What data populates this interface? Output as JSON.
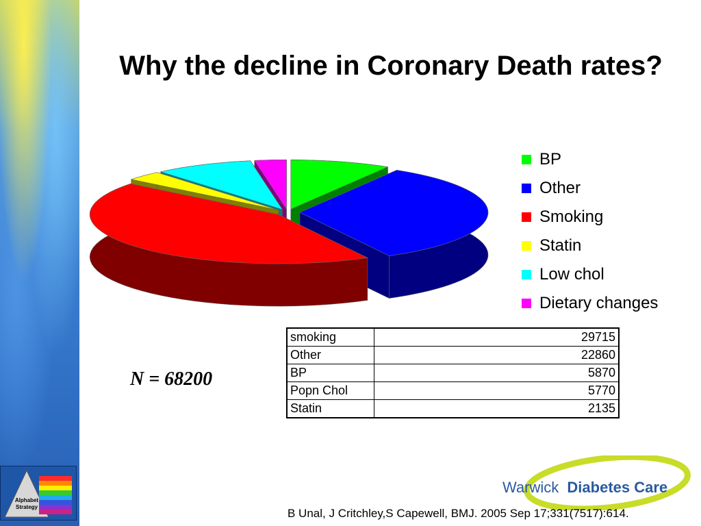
{
  "title": "Why the decline in Coronary Death rates?",
  "chart_data": {
    "type": "pie",
    "style": "3d-exploded",
    "legend_position": "right",
    "slices": [
      {
        "label": "BP",
        "value": 5870,
        "color": "#00ff00",
        "side_color": "#008000"
      },
      {
        "label": "Other",
        "value": 22860,
        "color": "#0000ff",
        "side_color": "#000080"
      },
      {
        "label": "Smoking",
        "value": 29715,
        "color": "#ff0000",
        "side_color": "#800000"
      },
      {
        "label": "Statin",
        "value": 2135,
        "color": "#ffff00",
        "side_color": "#808000"
      },
      {
        "label": "Low chol",
        "value": 5770,
        "color": "#00ffff",
        "side_color": "#008080"
      },
      {
        "label": "Dietary changes",
        "value": 1850,
        "color": "#ff00ff",
        "side_color": "#800080"
      }
    ]
  },
  "legend": [
    {
      "label": "BP",
      "color": "#00ff00"
    },
    {
      "label": "Other",
      "color": "#0000ff"
    },
    {
      "label": "Smoking",
      "color": "#ff0000"
    },
    {
      "label": "Statin",
      "color": "#ffff00"
    },
    {
      "label": "Low chol",
      "color": "#00ffff"
    },
    {
      "label": "Dietary changes",
      "color": "#ff00ff"
    }
  ],
  "table": {
    "rows": [
      {
        "label": "smoking",
        "value": "29715"
      },
      {
        "label": "Other",
        "value": "22860"
      },
      {
        "label": "BP",
        "value": "5870"
      },
      {
        "label": "Popn Chol",
        "value": "5770"
      },
      {
        "label": "Statin",
        "value": "2135"
      }
    ]
  },
  "n_label": "N = 68200",
  "logo": {
    "name_part1": "Warwick",
    "name_part2": "Diabetes Care"
  },
  "sidebar_logo": {
    "line1": "Alphabet",
    "line2": "Strategy"
  },
  "citation": "B Unal, J Critchley,S Capewell, BMJ. 2005 Sep 17;331(7517):614."
}
